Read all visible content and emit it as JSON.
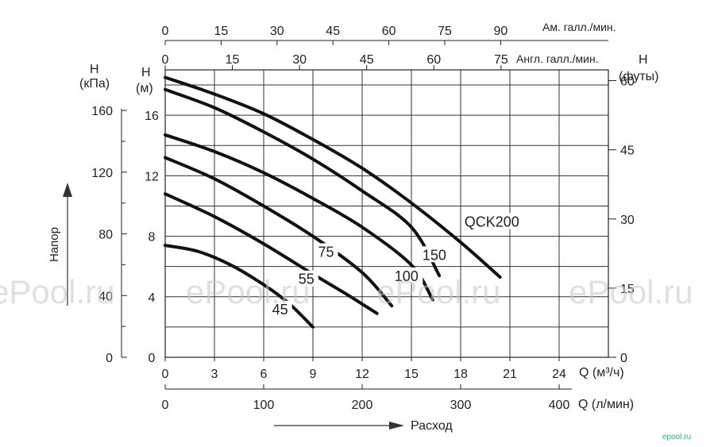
{
  "chart_data": {
    "type": "line",
    "x_unit_label": "Q (м³/ч)",
    "x_ticks": [
      0,
      3,
      6,
      9,
      12,
      15,
      18,
      21,
      24
    ],
    "x_range": [
      0,
      27
    ],
    "y_unit_label": "H\n(м)",
    "y_ticks": [
      0,
      4,
      8,
      12,
      16
    ],
    "y_range": [
      0,
      19
    ],
    "grid": true,
    "series": [
      {
        "name": "45",
        "x": [
          0,
          2,
          4,
          6,
          7.5,
          9
        ],
        "y": [
          7.4,
          7.0,
          6.1,
          4.8,
          3.6,
          2.0
        ],
        "label_at": [
          7.0,
          3.0
        ]
      },
      {
        "name": "55",
        "x": [
          0,
          3,
          6,
          9,
          11,
          12.9
        ],
        "y": [
          10.8,
          9.3,
          7.5,
          5.5,
          4.2,
          2.9
        ],
        "label_at": [
          8.6,
          5.0
        ]
      },
      {
        "name": "75",
        "x": [
          0,
          3,
          6,
          9,
          12,
          13.8
        ],
        "y": [
          13.2,
          11.8,
          10.0,
          8.0,
          5.6,
          3.4
        ],
        "label_at": [
          9.8,
          6.8
        ]
      },
      {
        "name": "100",
        "x": [
          0,
          3,
          6,
          9,
          12,
          15,
          16.3
        ],
        "y": [
          14.7,
          13.6,
          12.2,
          10.5,
          8.6,
          6.1,
          3.8
        ],
        "label_at": [
          14.7,
          5.2
        ]
      },
      {
        "name": "150",
        "x": [
          0,
          3,
          6,
          9,
          12,
          15,
          16.7
        ],
        "y": [
          17.7,
          16.5,
          14.9,
          13.1,
          11.0,
          8.6,
          5.4
        ],
        "label_at": [
          16.4,
          6.6
        ]
      },
      {
        "name": "QCK200",
        "x": [
          0,
          3,
          6,
          9,
          12,
          15,
          18,
          20.4
        ],
        "y": [
          18.5,
          17.4,
          16.1,
          14.4,
          12.5,
          10.2,
          7.6,
          5.3
        ],
        "label_at": [
          19.9,
          8.8
        ]
      }
    ]
  },
  "axes": {
    "top_am_label": "Ам. галл./мин.",
    "top_am_ticks": [
      "0",
      "15",
      "30",
      "45",
      "60",
      "75",
      "90"
    ],
    "top_engl_label": "Англ. галл./мин.",
    "top_engl_ticks": [
      "0",
      "15",
      "30",
      "45",
      "60",
      "75"
    ],
    "kpa_label_1": "H",
    "kpa_label_2": "(кПа)",
    "kpa_ticks": [
      "0",
      "40",
      "80",
      "120",
      "160"
    ],
    "m_label_1": "H",
    "m_label_2": "(м)",
    "ft_label_1": "H",
    "ft_label_2": "(футы)",
    "ft_ticks": [
      "0",
      "15",
      "30",
      "45",
      "60"
    ],
    "x_label": "Q (м³/ч)",
    "lmin_ticks": [
      "0",
      "100",
      "200",
      "300",
      "400"
    ],
    "lmin_label": "Q (л/мин)",
    "head_label": "Напор",
    "flow_label": "Расход"
  },
  "watermarks": [
    "ePool.ru",
    "ePool.ru",
    "ePool.ru",
    "ePool.ru"
  ],
  "logo_text": "epool.ru",
  "colors": {
    "line": "#111111",
    "grid": "#222222",
    "watermark": "#bdbdbd"
  }
}
